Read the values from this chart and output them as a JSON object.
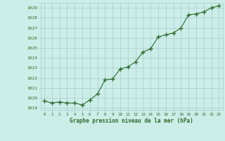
{
  "x": [
    0,
    1,
    2,
    3,
    4,
    5,
    6,
    7,
    8,
    9,
    10,
    11,
    12,
    13,
    14,
    15,
    16,
    17,
    18,
    19,
    20,
    21,
    22,
    23
  ],
  "y": [
    1019.7,
    1019.5,
    1019.6,
    1019.5,
    1019.5,
    1019.3,
    1019.8,
    1020.4,
    1021.8,
    1021.9,
    1022.9,
    1023.1,
    1023.6,
    1024.6,
    1024.9,
    1026.1,
    1026.3,
    1026.5,
    1027.0,
    1028.3,
    1028.4,
    1028.6,
    1029.0,
    1029.2
  ],
  "ylim": [
    1018.8,
    1029.5
  ],
  "yticks": [
    1019,
    1020,
    1021,
    1022,
    1023,
    1024,
    1025,
    1026,
    1027,
    1028,
    1029
  ],
  "xlabel": "Graphe pression niveau de la mer (hPa)",
  "line_color": "#2d6a2d",
  "marker_color": "#2d6a2d",
  "bg_color": "#cceee8",
  "grid_color": "#aacccc",
  "xlabel_color": "#2d6a2d",
  "tick_color": "#2d6a2d"
}
